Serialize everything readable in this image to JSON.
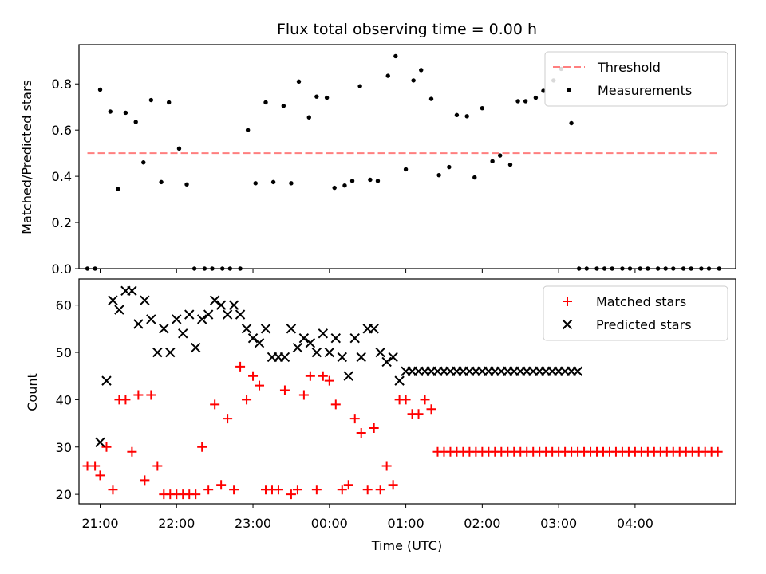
{
  "chart_data": [
    {
      "type": "scatter",
      "title": "Flux total observing time = 0.00 h",
      "xlabel": "",
      "ylabel": "Matched/Predicted stars",
      "ylim": [
        0,
        0.97
      ],
      "yticks": [
        "0.0",
        "0.2",
        "0.4",
        "0.6",
        "0.8"
      ],
      "ytick_values": [
        0,
        0.2,
        0.4,
        0.6,
        0.8
      ],
      "xlim": [
        -8.3,
        249.5
      ],
      "legend_placement": "top-right",
      "threshold": {
        "name": "Threshold",
        "value": 0.5,
        "x": [
          -5,
          243
        ],
        "color": "#ff7f7f"
      },
      "series": [
        {
          "name": "Measurements",
          "color": "#000000",
          "x": [
            -5,
            -2,
            0,
            4,
            7,
            10,
            14,
            17,
            20,
            24,
            27,
            31,
            34,
            37,
            41,
            44,
            48,
            51,
            55,
            58,
            61,
            65,
            68,
            72,
            75,
            78,
            82,
            85,
            89,
            92,
            96,
            99,
            102,
            106,
            109,
            113,
            116,
            120,
            123,
            126,
            130,
            133,
            137,
            140,
            144,
            147,
            150,
            154,
            157,
            161,
            164,
            167,
            171,
            174,
            178,
            181,
            185,
            188,
            191,
            195,
            198,
            201,
            205,
            208,
            212,
            215,
            219,
            222,
            225,
            229,
            232,
            236,
            239,
            243
          ],
          "y": [
            0,
            0,
            0.775,
            0.68,
            0.345,
            0.675,
            0.635,
            0.46,
            0.73,
            0.375,
            0.72,
            0.52,
            0.365,
            0,
            0,
            0,
            0,
            0,
            0,
            0.6,
            0.37,
            0.72,
            0.375,
            0.705,
            0.37,
            0.81,
            0.655,
            0.745,
            0.74,
            0.35,
            0.36,
            0.38,
            0.79,
            0.385,
            0.38,
            0.835,
            0.92,
            0.43,
            0.815,
            0.86,
            0.735,
            0.405,
            0.44,
            0.665,
            0.66,
            0.395,
            0.695,
            0.465,
            0.49,
            0.45,
            0.725,
            0.725,
            0.74,
            0.77,
            0.815,
            0.865,
            0.63,
            0,
            0,
            0,
            0,
            0,
            0,
            0,
            0,
            0,
            0,
            0,
            0,
            0,
            0,
            0,
            0,
            0
          ]
        }
      ]
    },
    {
      "type": "scatter",
      "title": "",
      "xlabel": "Time (UTC)",
      "ylabel": "Count",
      "ylim": [
        18,
        65.5
      ],
      "yticks": [
        "20",
        "30",
        "40",
        "50",
        "60"
      ],
      "ytick_values": [
        20,
        30,
        40,
        50,
        60
      ],
      "xlim": [
        -8.3,
        249.5
      ],
      "xticks": [
        "21:00",
        "22:00",
        "23:00",
        "00:00",
        "01:00",
        "02:00",
        "03:00",
        "04:00"
      ],
      "xtick_values": [
        0,
        30,
        60,
        90,
        120,
        150,
        180,
        210
      ],
      "legend_placement": "top-right",
      "series": [
        {
          "name": "Matched stars",
          "color": "#ff0000",
          "marker": "plus",
          "x": [
            -5,
            -2,
            0,
            2.5,
            5,
            7.5,
            10,
            12.5,
            15,
            17.5,
            20,
            22.5,
            25,
            27.5,
            30,
            32.5,
            35,
            37.5,
            40,
            42.5,
            45,
            47.5,
            50,
            52.5,
            55,
            57.5,
            60,
            62.5,
            65,
            67.5,
            70,
            72.5,
            75,
            77.5,
            80,
            82.5,
            85,
            87.5,
            90,
            92.5,
            95,
            97.5,
            100,
            102.5,
            105,
            107.5,
            110,
            112.5,
            115,
            117.5,
            120,
            122.5,
            125,
            127.5,
            130,
            132.5,
            135,
            137.5,
            140,
            142.5,
            145,
            147.5,
            150,
            152.5,
            155,
            157.5,
            160,
            162.5,
            165,
            167.5,
            170,
            172.5,
            175,
            177.5,
            180,
            182.5,
            185,
            187.5,
            190,
            192.5,
            195,
            197.5,
            200,
            202.5,
            205,
            207.5,
            210,
            212.5,
            215,
            217.5,
            220,
            222.5,
            225,
            227.5,
            230,
            232.5,
            235,
            237.5,
            240,
            242.5
          ],
          "y": [
            26,
            26,
            24,
            30,
            21,
            40,
            40,
            29,
            41,
            23,
            41,
            26,
            20,
            20,
            20,
            20,
            20,
            20,
            30,
            21,
            39,
            22,
            36,
            21,
            47,
            40,
            45,
            43,
            21,
            21,
            21,
            42,
            20,
            21,
            41,
            45,
            21,
            45,
            44,
            39,
            21,
            22,
            36,
            33,
            21,
            34,
            21,
            26,
            22,
            40,
            40,
            37,
            37,
            40,
            38,
            29,
            29,
            29,
            29,
            29,
            29,
            29,
            29,
            29,
            29,
            29,
            29,
            29,
            29,
            29,
            29,
            29,
            29,
            29,
            29,
            29,
            29,
            29,
            29,
            29,
            29,
            29,
            29,
            29,
            29,
            29,
            29,
            29,
            29,
            29,
            29,
            29,
            29,
            29,
            29,
            29,
            29,
            29,
            29,
            29
          ]
        },
        {
          "name": "Predicted stars",
          "color": "#000000",
          "marker": "x",
          "x": [
            0,
            2.5,
            5,
            7.5,
            10,
            12.5,
            15,
            17.5,
            20,
            22.5,
            25,
            27.5,
            30,
            32.5,
            35,
            37.5,
            40,
            42.5,
            45,
            47.5,
            50,
            52.5,
            55,
            57.5,
            60,
            62.5,
            65,
            67.5,
            70,
            72.5,
            75,
            77.5,
            80,
            82.5,
            85,
            87.5,
            90,
            92.5,
            95,
            97.5,
            100,
            102.5,
            105,
            107.5,
            110,
            112.5,
            115,
            117.5,
            120,
            122.5,
            125,
            127.5,
            130,
            132.5,
            135,
            137.5,
            140,
            142.5,
            145,
            147.5,
            150,
            152.5,
            155,
            157.5,
            160,
            162.5,
            165,
            167.5,
            170,
            172.5,
            175,
            177.5,
            180,
            182.5,
            185,
            187.5
          ],
          "y": [
            31,
            44,
            61,
            59,
            63,
            63,
            56,
            61,
            57,
            50,
            55,
            50,
            57,
            54,
            58,
            51,
            57,
            58,
            61,
            60,
            58,
            60,
            58,
            55,
            53,
            52,
            55,
            49,
            49,
            49,
            55,
            51,
            53,
            52,
            50,
            54,
            50,
            53,
            49,
            45,
            53,
            49,
            55,
            55,
            50,
            48,
            49,
            44,
            46,
            46,
            46,
            46,
            46,
            46,
            46,
            46,
            46,
            46,
            46,
            46,
            46,
            46,
            46,
            46,
            46,
            46,
            46,
            46,
            46,
            46,
            46,
            46,
            46,
            46,
            46,
            46
          ]
        }
      ]
    }
  ]
}
